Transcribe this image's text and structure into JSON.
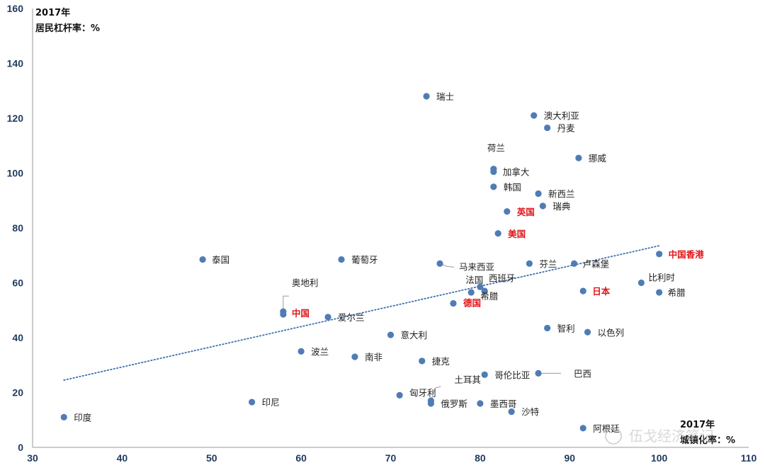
{
  "chart_data": {
    "type": "scatter",
    "title": "",
    "ylabel_line1": "2017年",
    "ylabel_line2": "居民杠杆率：%",
    "xlabel_line1": "2017年",
    "xlabel_line2": "城镇化率：%",
    "xlim": [
      30,
      110
    ],
    "ylim": [
      0,
      160
    ],
    "x_ticks": [
      30,
      40,
      50,
      60,
      70,
      80,
      90,
      100,
      110
    ],
    "y_ticks": [
      0,
      20,
      40,
      60,
      80,
      100,
      120,
      140,
      160
    ],
    "grid": false,
    "marker_color": "#4f7cb5",
    "highlight_color": "#e0161b",
    "trendline": {
      "style": "dotted",
      "color": "#3e6fb0",
      "x": [
        33.5,
        100
      ],
      "y": [
        24.5,
        73.5
      ]
    },
    "points": [
      {
        "name": "印度",
        "x": 33.5,
        "y": 11,
        "highlight": false
      },
      {
        "name": "泰国",
        "x": 49,
        "y": 68.5,
        "highlight": false
      },
      {
        "name": "印尼",
        "x": 54.5,
        "y": 16.5,
        "highlight": false
      },
      {
        "name": "奥地利",
        "x": 58,
        "y": 49.5,
        "highlight": false
      },
      {
        "name": "中国",
        "x": 58,
        "y": 48.5,
        "highlight": true
      },
      {
        "name": "波兰",
        "x": 60,
        "y": 35,
        "highlight": false
      },
      {
        "name": "爱尔兰",
        "x": 63,
        "y": 47.5,
        "highlight": false
      },
      {
        "name": "葡萄牙",
        "x": 64.5,
        "y": 68.5,
        "highlight": false
      },
      {
        "name": "南非",
        "x": 66,
        "y": 33,
        "highlight": false
      },
      {
        "name": "意大利",
        "x": 70,
        "y": 41,
        "highlight": false
      },
      {
        "name": "匈牙利",
        "x": 71,
        "y": 19,
        "highlight": false
      },
      {
        "name": "瑞士",
        "x": 74,
        "y": 128,
        "highlight": false
      },
      {
        "name": "捷克",
        "x": 73.5,
        "y": 31.5,
        "highlight": false
      },
      {
        "name": "俄罗斯",
        "x": 74.5,
        "y": 16,
        "highlight": false
      },
      {
        "name": "土耳其",
        "x": 74.5,
        "y": 17,
        "highlight": false
      },
      {
        "name": "马来西亚",
        "x": 75.5,
        "y": 67,
        "highlight": false
      },
      {
        "name": "德国",
        "x": 77,
        "y": 52.5,
        "highlight": true
      },
      {
        "name": "法国",
        "x": 79,
        "y": 56.5,
        "highlight": false
      },
      {
        "name": "墨西哥",
        "x": 80,
        "y": 16,
        "highlight": false
      },
      {
        "name": "西班牙",
        "x": 80,
        "y": 58.5,
        "highlight": false
      },
      {
        "name": "希腊",
        "x": 80.5,
        "y": 57,
        "highlight": false
      },
      {
        "name": "哥伦比亚",
        "x": 80.5,
        "y": 26.5,
        "highlight": false
      },
      {
        "name": "荷兰",
        "x": 81.5,
        "y": 101.5,
        "highlight": false
      },
      {
        "name": "加拿大",
        "x": 81.5,
        "y": 100.5,
        "highlight": false
      },
      {
        "name": "韩国",
        "x": 81.5,
        "y": 95,
        "highlight": false
      },
      {
        "name": "美国",
        "x": 82,
        "y": 78,
        "highlight": true
      },
      {
        "name": "沙特",
        "x": 83.5,
        "y": 13,
        "highlight": false
      },
      {
        "name": "英国",
        "x": 83,
        "y": 86,
        "highlight": true
      },
      {
        "name": "芬兰",
        "x": 85.5,
        "y": 67,
        "highlight": false
      },
      {
        "name": "澳大利亚",
        "x": 86,
        "y": 121,
        "highlight": false
      },
      {
        "name": "新西兰",
        "x": 86.5,
        "y": 92.5,
        "highlight": false
      },
      {
        "name": "巴西",
        "x": 86.5,
        "y": 27,
        "highlight": false
      },
      {
        "name": "瑞典",
        "x": 87,
        "y": 88,
        "highlight": false
      },
      {
        "name": "智利",
        "x": 87.5,
        "y": 43.5,
        "highlight": false
      },
      {
        "name": "丹麦",
        "x": 87.5,
        "y": 116.5,
        "highlight": false
      },
      {
        "name": "卢森堡",
        "x": 90.5,
        "y": 67,
        "highlight": false
      },
      {
        "name": "挪威",
        "x": 91,
        "y": 105.5,
        "highlight": false
      },
      {
        "name": "日本",
        "x": 91.5,
        "y": 57,
        "highlight": true
      },
      {
        "name": "以色列",
        "x": 92,
        "y": 42,
        "highlight": false
      },
      {
        "name": "阿根廷",
        "x": 91.5,
        "y": 7,
        "highlight": false
      },
      {
        "name": "比利时",
        "x": 98,
        "y": 60,
        "highlight": false
      },
      {
        "name": "希腊",
        "x": 100,
        "y": 56.5,
        "highlight": false
      },
      {
        "name": "中国香港",
        "x": 100,
        "y": 70.5,
        "highlight": true
      }
    ]
  },
  "watermark": "伍戈经济笔记"
}
